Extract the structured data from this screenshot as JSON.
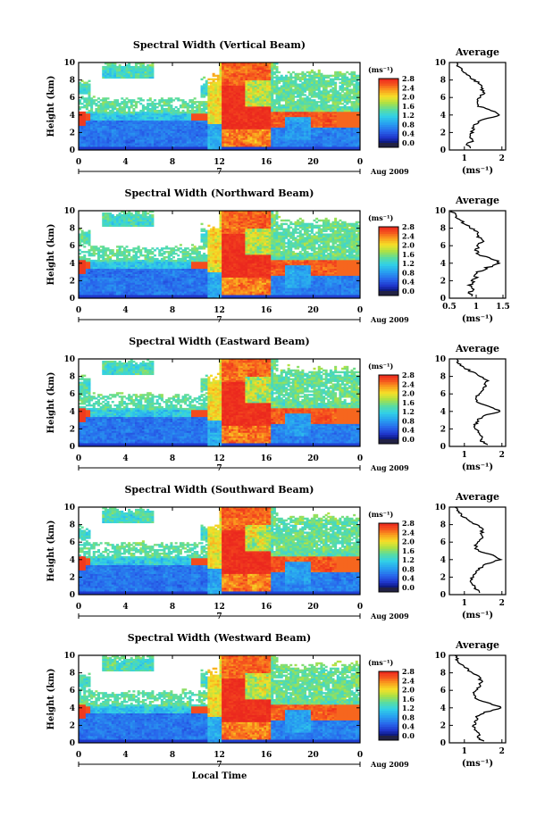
{
  "chart_data": [
    {
      "type": "heatmap",
      "title": "Spectral Width (Vertical Beam)",
      "ylabel": "Height (km)",
      "xticks": [
        "0",
        "4",
        "8",
        "12",
        "16",
        "20",
        "0"
      ],
      "yticks": [
        "0",
        "2",
        "4",
        "6",
        "8",
        "10"
      ],
      "xlim": [
        0,
        24
      ],
      "ylim": [
        0,
        10
      ],
      "date_marker": "7",
      "date_label": "Aug 2009",
      "colorbar_unit": "(ms⁻¹)",
      "colorbar_ticks": [
        "0.0",
        "0.4",
        "0.8",
        "1.2",
        "1.6",
        "2.0",
        "2.4",
        "2.8"
      ],
      "colorbar_range": [
        0,
        2.8
      ],
      "average_profile": {
        "title": "Average",
        "xlabel": "(ms⁻¹)",
        "xticks": [
          "1",
          "2"
        ],
        "xlim": [
          0.6,
          2.1
        ],
        "height": [
          0.2,
          0.6,
          1.0,
          1.5,
          2.0,
          2.5,
          3.0,
          3.5,
          4.0,
          4.5,
          5.0,
          5.5,
          6.0,
          6.5,
          7.0,
          7.5,
          8.0,
          8.5,
          9.0,
          9.5,
          10.0
        ],
        "values": [
          1.2,
          1.05,
          1.2,
          1.15,
          1.2,
          1.25,
          1.3,
          1.5,
          1.95,
          1.75,
          1.4,
          1.35,
          1.4,
          1.5,
          1.45,
          1.45,
          1.25,
          1.1,
          0.95,
          0.85,
          0.8
        ]
      }
    },
    {
      "type": "heatmap",
      "title": "Spectral Width (Northward Beam)",
      "ylabel": "Height (km)",
      "xticks": [
        "0",
        "4",
        "8",
        "12",
        "16",
        "20",
        "0"
      ],
      "yticks": [
        "0",
        "2",
        "4",
        "6",
        "8",
        "10"
      ],
      "xlim": [
        0,
        24
      ],
      "ylim": [
        0,
        10
      ],
      "date_marker": "7",
      "date_label": "Aug 2009",
      "colorbar_unit": "(ms⁻¹)",
      "colorbar_ticks": [
        "0.0",
        "0.4",
        "0.8",
        "1.2",
        "1.6",
        "2.0",
        "2.4",
        "2.8"
      ],
      "colorbar_range": [
        0,
        2.8
      ],
      "average_profile": {
        "title": "Average",
        "xlabel": "(ms⁻¹)",
        "xticks": [
          "0.5",
          "1",
          "1.5"
        ],
        "xlim": [
          0.5,
          1.55
        ],
        "height": [
          0.2,
          0.6,
          1.0,
          1.5,
          2.0,
          2.5,
          3.0,
          3.5,
          4.0,
          4.5,
          5.0,
          5.5,
          6.0,
          6.5,
          7.0,
          7.5,
          8.0,
          8.5,
          9.0,
          9.5,
          10.0
        ],
        "values": [
          0.95,
          0.85,
          0.95,
          0.9,
          0.95,
          1.0,
          1.05,
          1.2,
          1.45,
          1.3,
          1.05,
          1.0,
          1.05,
          1.1,
          1.05,
          1.05,
          0.9,
          0.8,
          0.7,
          0.6,
          0.55
        ]
      }
    },
    {
      "type": "heatmap",
      "title": "Spectral Width (Eastward Beam)",
      "ylabel": "Height (km)",
      "xticks": [
        "0",
        "4",
        "8",
        "12",
        "16",
        "20",
        "0"
      ],
      "yticks": [
        "0",
        "2",
        "4",
        "6",
        "8",
        "10"
      ],
      "xlim": [
        0,
        24
      ],
      "ylim": [
        0,
        10
      ],
      "date_marker": "7",
      "date_label": "Aug 2009",
      "colorbar_unit": "(ms⁻¹)",
      "colorbar_ticks": [
        "0.0",
        "0.4",
        "0.8",
        "1.2",
        "1.6",
        "2.0",
        "2.4",
        "2.8"
      ],
      "colorbar_range": [
        0,
        2.8
      ],
      "average_profile": {
        "title": "Average",
        "xlabel": "(ms⁻¹)",
        "xticks": [
          "1",
          "2"
        ],
        "xlim": [
          0.6,
          2.1
        ],
        "height": [
          0.2,
          0.6,
          1.0,
          1.5,
          2.0,
          2.5,
          3.0,
          3.5,
          4.0,
          4.5,
          5.0,
          5.5,
          6.0,
          6.5,
          7.0,
          7.5,
          8.0,
          8.5,
          9.0,
          9.5,
          10.0
        ],
        "values": [
          1.6,
          1.45,
          1.5,
          1.4,
          1.3,
          1.3,
          1.35,
          1.5,
          1.95,
          1.7,
          1.35,
          1.3,
          1.4,
          1.5,
          1.55,
          1.6,
          1.45,
          1.2,
          1.0,
          0.85,
          0.8
        ]
      }
    },
    {
      "type": "heatmap",
      "title": "Spectral Width (Southward Beam)",
      "ylabel": "Height (km)",
      "xticks": [
        "0",
        "4",
        "8",
        "12",
        "16",
        "20",
        "0"
      ],
      "yticks": [
        "0",
        "2",
        "4",
        "6",
        "8",
        "10"
      ],
      "xlim": [
        0,
        24
      ],
      "ylim": [
        0,
        10
      ],
      "date_marker": "7",
      "date_label": "Aug 2009",
      "colorbar_unit": "(ms⁻¹)",
      "colorbar_ticks": [
        "0.0",
        "0.4",
        "0.8",
        "1.2",
        "1.6",
        "2.0",
        "2.4",
        "2.8"
      ],
      "colorbar_range": [
        0,
        2.8
      ],
      "average_profile": {
        "title": "Average",
        "xlabel": "(ms⁻¹)",
        "xticks": [
          "1",
          "2"
        ],
        "xlim": [
          0.6,
          2.1
        ],
        "height": [
          0.2,
          0.6,
          1.0,
          1.5,
          2.0,
          2.5,
          3.0,
          3.5,
          4.0,
          4.5,
          5.0,
          5.5,
          6.0,
          6.5,
          7.0,
          7.5,
          8.0,
          8.5,
          9.0,
          9.5,
          10.0
        ],
        "values": [
          1.45,
          1.3,
          1.25,
          1.2,
          1.2,
          1.3,
          1.4,
          1.6,
          1.95,
          1.75,
          1.35,
          1.3,
          1.35,
          1.45,
          1.45,
          1.5,
          1.3,
          1.1,
          0.95,
          0.85,
          0.75
        ]
      }
    },
    {
      "type": "heatmap",
      "title": "Spectral Width (Westward Beam)",
      "ylabel": "Height (km)",
      "xlabel": "Local Time",
      "xticks": [
        "0",
        "4",
        "8",
        "12",
        "16",
        "20",
        "0"
      ],
      "yticks": [
        "0",
        "2",
        "4",
        "6",
        "8",
        "10"
      ],
      "xlim": [
        0,
        24
      ],
      "ylim": [
        0,
        10
      ],
      "date_marker": "7",
      "date_label": "Aug 2009",
      "colorbar_unit": "(ms⁻¹)",
      "colorbar_ticks": [
        "0.0",
        "0.4",
        "0.8",
        "1.2",
        "1.6",
        "2.0",
        "2.4",
        "2.8"
      ],
      "colorbar_range": [
        0,
        2.8
      ],
      "average_profile": {
        "title": "Average",
        "xlabel": "(ms⁻¹)",
        "xticks": [
          "1",
          "2"
        ],
        "xlim": [
          0.6,
          2.1
        ],
        "height": [
          0.2,
          0.6,
          1.0,
          1.5,
          2.0,
          2.5,
          3.0,
          3.5,
          4.0,
          4.5,
          5.0,
          5.5,
          6.0,
          6.5,
          7.0,
          7.5,
          8.0,
          8.5,
          9.0,
          9.5,
          10.0
        ],
        "values": [
          1.5,
          1.35,
          1.4,
          1.3,
          1.25,
          1.3,
          1.35,
          1.55,
          2.0,
          1.7,
          1.3,
          1.25,
          1.3,
          1.4,
          1.45,
          1.4,
          1.2,
          1.05,
          0.9,
          0.8,
          0.75
        ]
      }
    }
  ]
}
